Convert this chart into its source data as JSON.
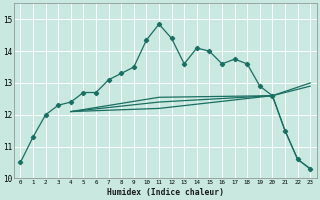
{
  "xlabel": "Humidex (Indice chaleur)",
  "bg_color": "#c8e8e0",
  "plot_bg_color": "#c8e8e0",
  "grid_color": "#ffffff",
  "line_color": "#1a6e62",
  "xlim": [
    -0.5,
    23.5
  ],
  "ylim": [
    10,
    15.5
  ],
  "xticks": [
    0,
    1,
    2,
    3,
    4,
    5,
    6,
    7,
    8,
    9,
    10,
    11,
    12,
    13,
    14,
    15,
    16,
    17,
    18,
    19,
    20,
    21,
    22,
    23
  ],
  "yticks": [
    10,
    11,
    12,
    13,
    14,
    15
  ],
  "series1_x": [
    0,
    1,
    2,
    3,
    4,
    5,
    6,
    7,
    8,
    9,
    10,
    11,
    12,
    13,
    14,
    15,
    16,
    17,
    18,
    19,
    20,
    21,
    22,
    23
  ],
  "series1_y": [
    10.5,
    11.3,
    12.0,
    12.3,
    12.4,
    12.7,
    12.7,
    13.1,
    13.3,
    13.5,
    14.35,
    14.85,
    14.4,
    13.6,
    14.1,
    14.0,
    13.6,
    13.75,
    13.6,
    12.9,
    12.6,
    11.5,
    10.6,
    10.3
  ],
  "series2_x": [
    4,
    11,
    20,
    23
  ],
  "series2_y": [
    12.1,
    12.55,
    12.6,
    12.9
  ],
  "series3_x": [
    4,
    11,
    20,
    23
  ],
  "series3_y": [
    12.1,
    12.4,
    12.6,
    13.0
  ],
  "series4_x": [
    4,
    11,
    20,
    21,
    22,
    23
  ],
  "series4_y": [
    12.1,
    12.2,
    12.6,
    11.5,
    10.6,
    10.3
  ]
}
